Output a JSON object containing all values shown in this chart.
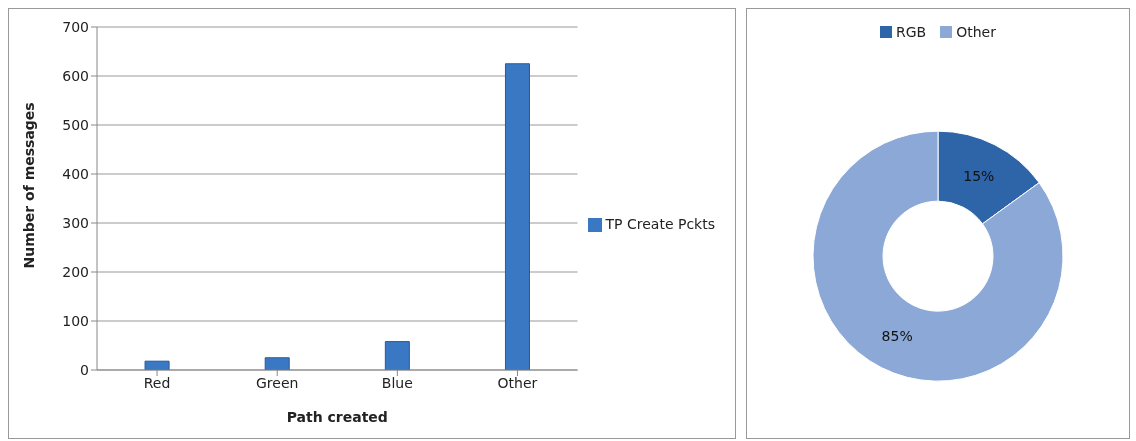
{
  "chart_data": [
    {
      "type": "bar",
      "categories": [
        "Red",
        "Green",
        "Blue",
        "Other"
      ],
      "xlabel": "Path created",
      "ylabel": "Number of messages",
      "series": [
        {
          "name": "TP Create Pckts",
          "color": "#3a78c4",
          "values": [
            18,
            25,
            58,
            625
          ]
        }
      ],
      "ylim": [
        0,
        700
      ],
      "yticks": [
        0,
        100,
        200,
        300,
        400,
        500,
        600,
        700
      ],
      "grid": "y",
      "legend": "right"
    },
    {
      "type": "donut",
      "categories": [
        "RGB",
        "Other"
      ],
      "values": [
        15,
        85
      ],
      "colors": [
        "#2e64a8",
        "#8ba8d6"
      ],
      "value_labels": [
        "15%",
        "85%"
      ],
      "legend": "top"
    }
  ]
}
